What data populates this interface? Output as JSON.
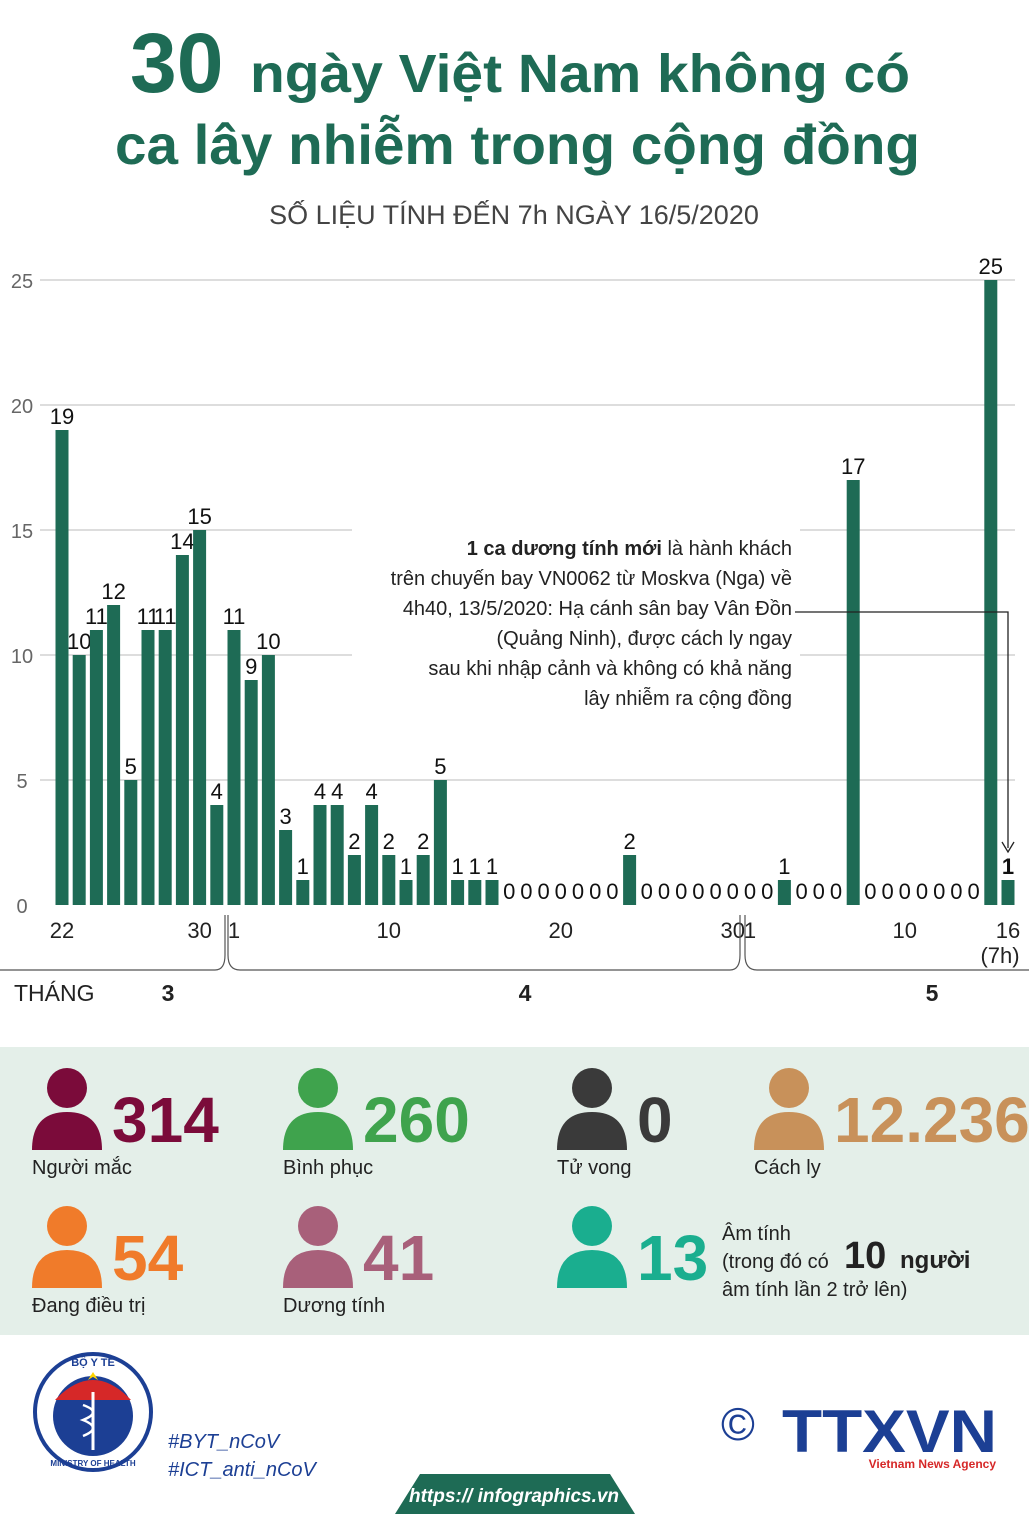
{
  "chart_data": {
    "type": "bar",
    "title_number": "30",
    "title_line1": "ngày Việt Nam không có",
    "title_line2": "ca lây nhiễm trong cộng đồng",
    "subtitle": "SỐ LIỆU TÍNH ĐẾN 7h NGÀY 16/5/2020",
    "categories": [
      "22",
      null,
      null,
      null,
      null,
      null,
      null,
      null,
      "30",
      null,
      "1",
      null,
      null,
      null,
      null,
      null,
      null,
      null,
      null,
      "10",
      null,
      null,
      null,
      null,
      null,
      null,
      null,
      null,
      null,
      "20",
      null,
      null,
      null,
      null,
      null,
      null,
      null,
      null,
      null,
      "30",
      "1",
      null,
      null,
      null,
      null,
      null,
      null,
      null,
      null,
      "10",
      null,
      null,
      null,
      null,
      null,
      "16"
    ],
    "last_note": "(7h)",
    "values": [
      19,
      10,
      11,
      12,
      5,
      11,
      11,
      14,
      15,
      4,
      11,
      9,
      10,
      3,
      1,
      4,
      4,
      2,
      4,
      2,
      1,
      2,
      5,
      1,
      1,
      1,
      0,
      0,
      0,
      0,
      0,
      0,
      0,
      2,
      0,
      0,
      0,
      0,
      0,
      0,
      0,
      0,
      1,
      0,
      0,
      0,
      17,
      0,
      0,
      0,
      0,
      0,
      0,
      0,
      25,
      1
    ],
    "color": "#1e6b55",
    "ylim": [
      0,
      25
    ],
    "yticks": [
      0,
      5,
      10,
      15,
      20,
      25
    ],
    "grid": true,
    "month_label": "THÁNG",
    "months": [
      "3",
      "4",
      "5"
    ],
    "annotation": {
      "bold": "1 ca dương tính mới",
      "lines": [
        " là hành khách",
        "trên chuyến bay VN0062 từ Moskva (Nga) về",
        "4h40, 13/5/2020: Hạ cánh sân bay Vân Đồn",
        "(Quảng Ninh), được cách ly ngay",
        "sau khi nhập cảnh và không có khả năng",
        "lây nhiễm ra cộng đồng"
      ]
    }
  },
  "stats": [
    {
      "value": "314",
      "label": "Người mắc",
      "color": "#7b0b3a"
    },
    {
      "value": "260",
      "label": "Bình phục",
      "color": "#3fa34d"
    },
    {
      "value": "0",
      "label": "Tử vong",
      "color": "#3a3a3a"
    },
    {
      "value": "12.236",
      "label": "Cách ly",
      "color": "#c8915a"
    },
    {
      "value": "54",
      "label": "Đang điều trị",
      "color": "#f07b2a"
    },
    {
      "value": "41",
      "label": "Dương tính",
      "color": "#a8607a"
    },
    {
      "value": "13",
      "label": "Âm tính",
      "color": "#1aae8f",
      "note1": "(trong đó có",
      "note_number": "10",
      "note2": "người",
      "note3": "âm tính lần 2 trở lên)"
    }
  ],
  "footer": {
    "logo_text": "BỘ Y TẾ",
    "logo_sub": "MINISTRY OF HEALTH",
    "hashtag1": "#BYT_nCoV",
    "hashtag2": "#ICT_anti_nCoV",
    "copyright": "©",
    "agency": "TTXVN",
    "agency_sub": "Vietnam News Agency",
    "url": "https:// infographics.vn"
  }
}
